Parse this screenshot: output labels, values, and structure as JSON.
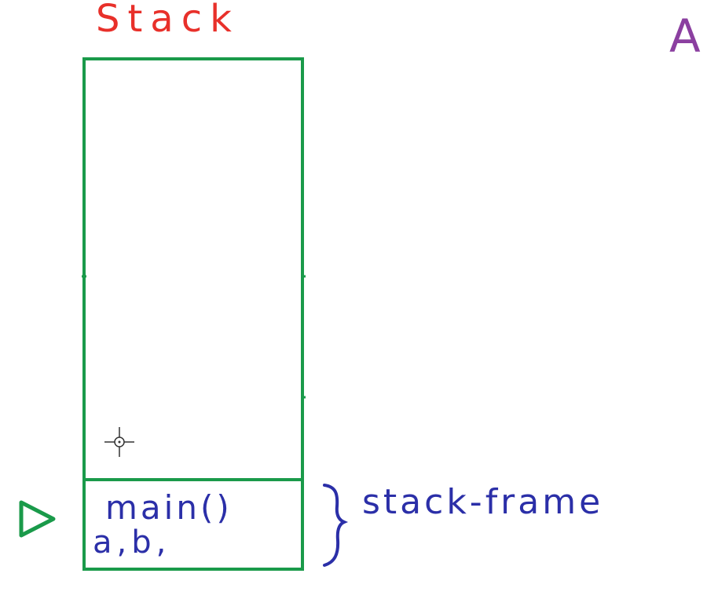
{
  "stack_title": "Stack",
  "frame": {
    "function_label": "main()",
    "locals_label": "a,b,"
  },
  "annotation": "stack-frame",
  "cut_off_letter": "A",
  "colors": {
    "title": "#e8302a",
    "stack_outline": "#1a9a4a",
    "frame_text": "#2b2fa8",
    "cut_off_letter": "#8b3fa0",
    "cursor": "#333333"
  },
  "icons": {
    "pointer": "triangle-pointer-icon",
    "cursor": "crosshair-cursor-icon",
    "brace": "right-brace-icon"
  }
}
